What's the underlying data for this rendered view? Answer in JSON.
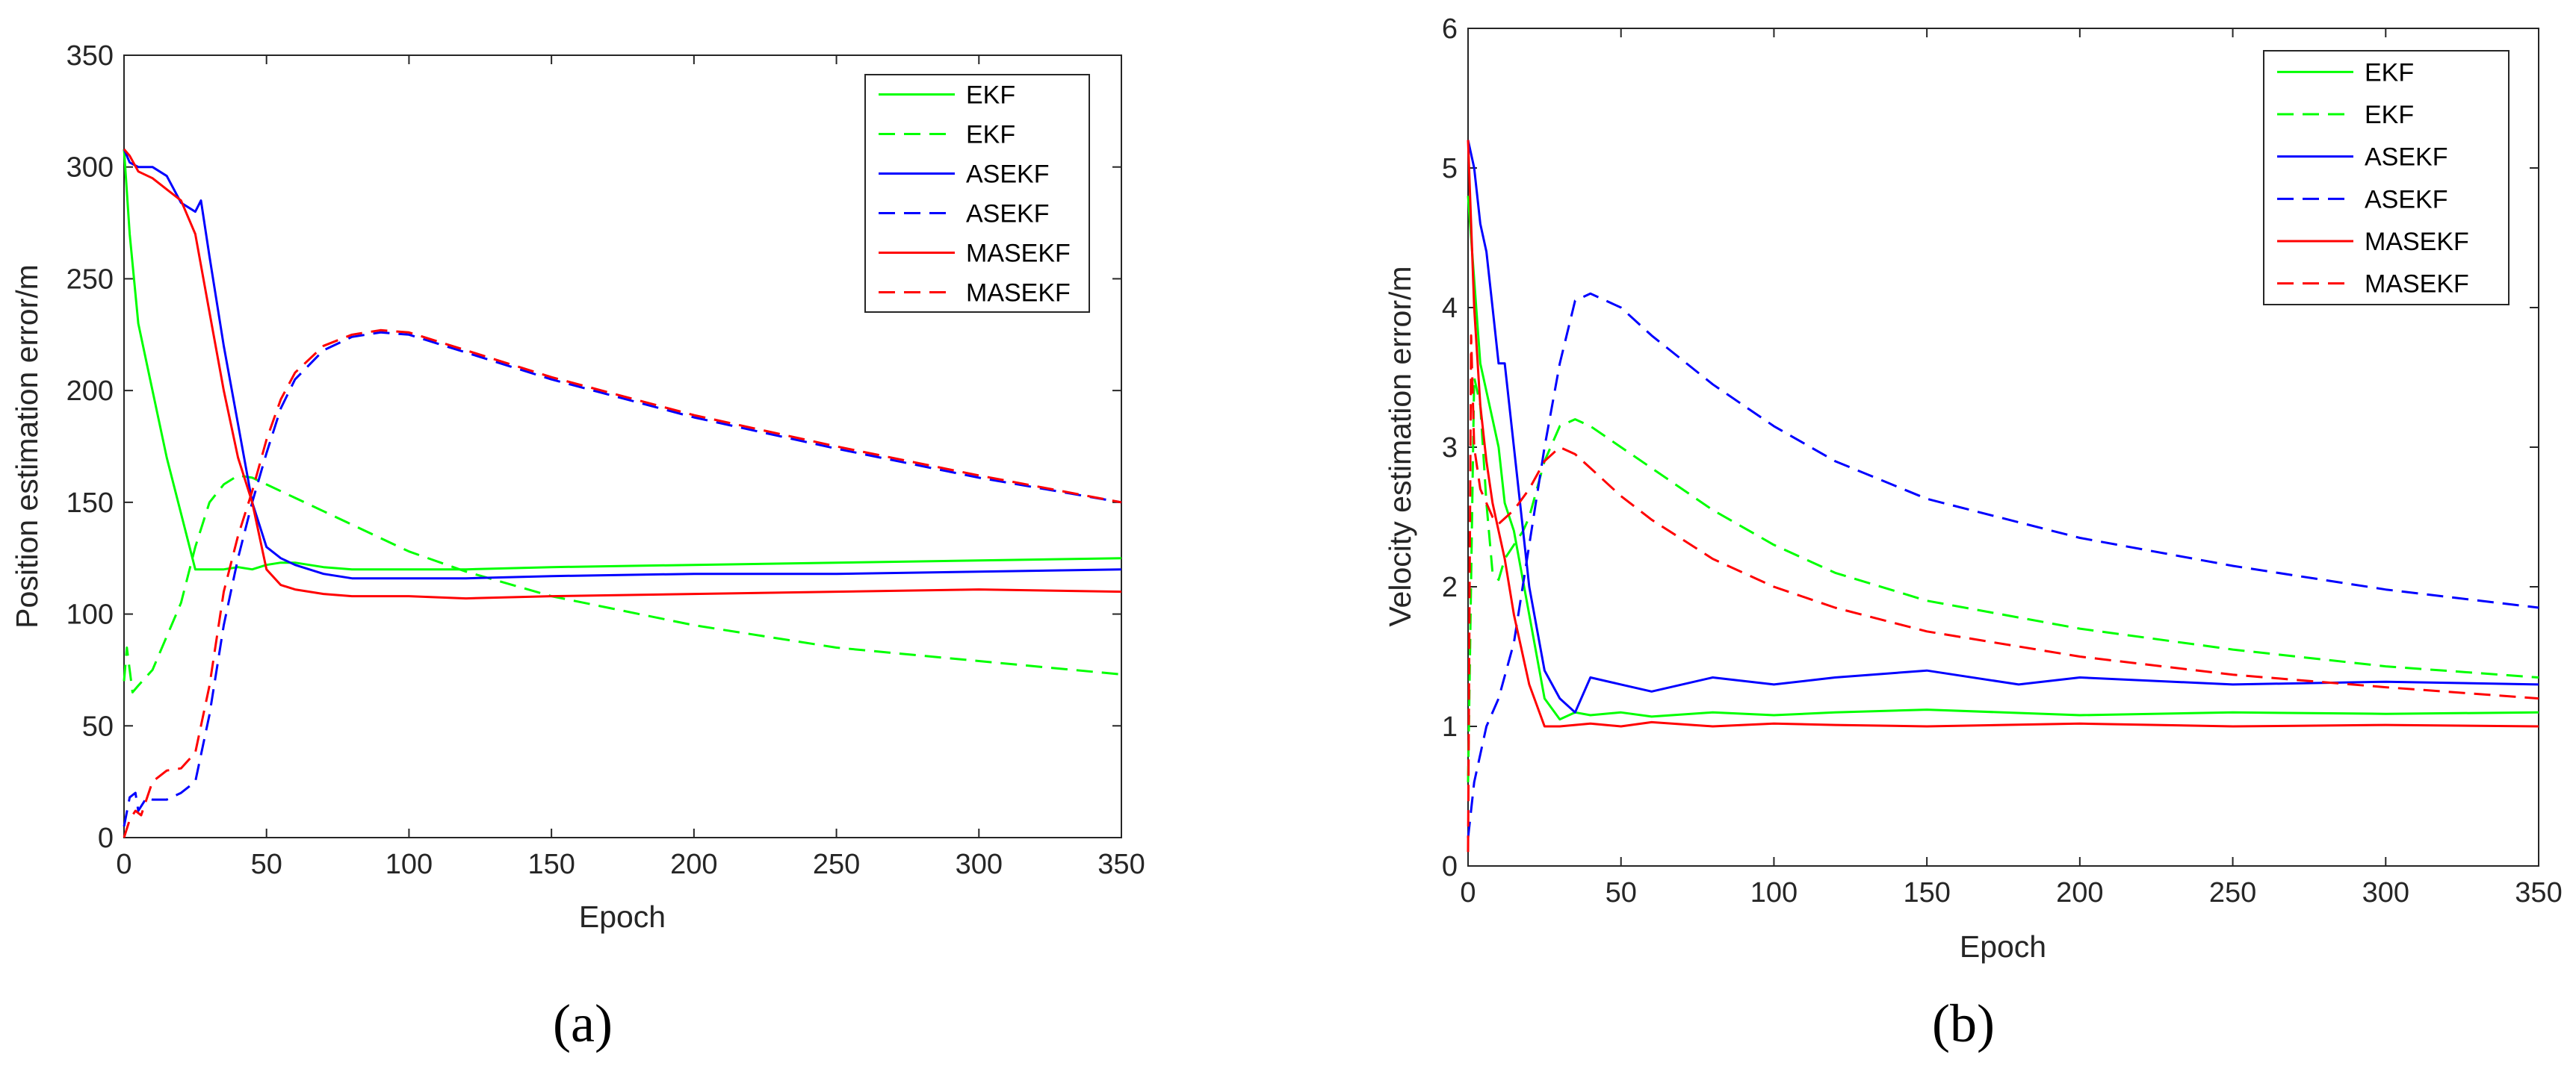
{
  "chart_data": [
    {
      "type": "line",
      "panel_label": "(a)",
      "title": "",
      "xlabel": "Epoch",
      "ylabel": "Position estimation error/m",
      "xlim": [
        0,
        350
      ],
      "ylim": [
        0,
        350
      ],
      "xticks": [
        0,
        50,
        100,
        150,
        200,
        250,
        300,
        350
      ],
      "yticks": [
        0,
        50,
        100,
        150,
        200,
        250,
        300,
        350
      ],
      "legend_position": "top-right",
      "series": [
        {
          "name": "EKF",
          "color": "#00ff00",
          "dash": "solid",
          "x": [
            0,
            2,
            5,
            10,
            15,
            20,
            25,
            30,
            35,
            40,
            45,
            50,
            55,
            60,
            70,
            80,
            100,
            120,
            150,
            200,
            250,
            300,
            350
          ],
          "y": [
            308,
            270,
            230,
            200,
            170,
            145,
            120,
            120,
            120,
            121,
            120,
            122,
            123,
            123,
            121,
            120,
            120,
            120,
            121,
            122,
            123,
            124,
            125
          ]
        },
        {
          "name": "EKF",
          "color": "#00ff00",
          "dash": "dashed",
          "x": [
            0,
            1,
            2,
            3,
            5,
            10,
            15,
            20,
            25,
            30,
            35,
            40,
            45,
            50,
            60,
            70,
            80,
            90,
            100,
            120,
            150,
            200,
            250,
            300,
            350
          ],
          "y": [
            70,
            85,
            75,
            65,
            68,
            75,
            90,
            105,
            130,
            150,
            158,
            162,
            161,
            158,
            152,
            146,
            140,
            134,
            128,
            119,
            108,
            95,
            85,
            79,
            73
          ]
        },
        {
          "name": "ASEKF",
          "color": "#0000ff",
          "dash": "solid",
          "x": [
            0,
            2,
            5,
            10,
            15,
            20,
            25,
            27,
            30,
            35,
            40,
            45,
            50,
            55,
            60,
            70,
            80,
            90,
            100,
            120,
            150,
            200,
            250,
            300,
            350
          ],
          "y": [
            308,
            302,
            300,
            300,
            296,
            284,
            280,
            285,
            260,
            220,
            185,
            150,
            130,
            125,
            122,
            118,
            116,
            116,
            116,
            116,
            117,
            118,
            118,
            119,
            120
          ]
        },
        {
          "name": "ASEKF",
          "color": "#0000ff",
          "dash": "dashed",
          "x": [
            0,
            2,
            4,
            5,
            8,
            10,
            15,
            20,
            25,
            30,
            35,
            40,
            45,
            50,
            55,
            60,
            70,
            80,
            90,
            100,
            120,
            150,
            200,
            250,
            300,
            350
          ],
          "y": [
            5,
            18,
            20,
            12,
            18,
            17,
            17,
            20,
            25,
            55,
            95,
            125,
            150,
            172,
            192,
            205,
            218,
            224,
            226,
            225,
            217,
            205,
            188,
            174,
            161,
            150
          ]
        },
        {
          "name": "MASEKF",
          "color": "#ff0000",
          "dash": "solid",
          "x": [
            0,
            2,
            5,
            10,
            15,
            20,
            25,
            30,
            35,
            40,
            45,
            50,
            55,
            60,
            70,
            80,
            100,
            120,
            150,
            200,
            250,
            300,
            350
          ],
          "y": [
            308,
            305,
            298,
            295,
            290,
            285,
            270,
            235,
            200,
            170,
            150,
            120,
            113,
            111,
            109,
            108,
            108,
            107,
            108,
            109,
            110,
            111,
            110
          ]
        },
        {
          "name": "MASEKF",
          "color": "#ff0000",
          "dash": "dashed",
          "x": [
            0,
            2,
            4,
            6,
            10,
            15,
            20,
            25,
            30,
            35,
            40,
            45,
            50,
            55,
            60,
            70,
            80,
            90,
            100,
            120,
            150,
            200,
            250,
            300,
            350
          ],
          "y": [
            0,
            8,
            12,
            10,
            25,
            30,
            31,
            38,
            68,
            110,
            135,
            155,
            178,
            196,
            208,
            220,
            225,
            227,
            226,
            218,
            206,
            189,
            175,
            162,
            150
          ]
        }
      ]
    },
    {
      "type": "line",
      "panel_label": "(b)",
      "title": "",
      "xlabel": "Epoch",
      "ylabel": "Velocity estimation error/m",
      "xlim": [
        0,
        350
      ],
      "ylim": [
        0,
        6
      ],
      "xticks": [
        0,
        50,
        100,
        150,
        200,
        250,
        300,
        350
      ],
      "yticks": [
        0,
        1,
        2,
        3,
        4,
        5,
        6
      ],
      "legend_position": "top-right",
      "series": [
        {
          "name": "EKF",
          "color": "#00ff00",
          "dash": "solid",
          "x": [
            0,
            2,
            4,
            6,
            8,
            10,
            12,
            15,
            20,
            25,
            30,
            35,
            40,
            50,
            60,
            80,
            100,
            120,
            150,
            200,
            250,
            300,
            350
          ],
          "y": [
            4.8,
            4.2,
            3.6,
            3.4,
            3.2,
            3.0,
            2.6,
            2.4,
            1.8,
            1.2,
            1.05,
            1.1,
            1.08,
            1.1,
            1.07,
            1.1,
            1.08,
            1.1,
            1.12,
            1.08,
            1.1,
            1.09,
            1.1
          ]
        },
        {
          "name": "EKF",
          "color": "#00ff00",
          "dash": "dashed",
          "x": [
            0,
            2,
            4,
            6,
            8,
            10,
            12,
            15,
            18,
            20,
            25,
            30,
            35,
            40,
            50,
            60,
            80,
            100,
            120,
            150,
            200,
            250,
            300,
            350
          ],
          "y": [
            0.6,
            3.5,
            3.3,
            2.6,
            2.1,
            2.05,
            2.2,
            2.3,
            2.4,
            2.5,
            2.9,
            3.15,
            3.2,
            3.15,
            3.0,
            2.85,
            2.55,
            2.3,
            2.1,
            1.9,
            1.7,
            1.55,
            1.43,
            1.35
          ]
        },
        {
          "name": "ASEKF",
          "color": "#0000ff",
          "dash": "solid",
          "x": [
            0,
            2,
            4,
            6,
            8,
            10,
            12,
            15,
            18,
            20,
            25,
            30,
            35,
            40,
            50,
            60,
            80,
            100,
            120,
            150,
            180,
            200,
            250,
            300,
            350
          ],
          "y": [
            5.2,
            5.0,
            4.6,
            4.4,
            4.0,
            3.6,
            3.6,
            3.0,
            2.4,
            2.0,
            1.4,
            1.2,
            1.1,
            1.35,
            1.3,
            1.25,
            1.35,
            1.3,
            1.35,
            1.4,
            1.3,
            1.35,
            1.3,
            1.32,
            1.3
          ]
        },
        {
          "name": "ASEKF",
          "color": "#0000ff",
          "dash": "dashed",
          "x": [
            0,
            2,
            4,
            6,
            10,
            15,
            20,
            25,
            30,
            35,
            40,
            50,
            60,
            80,
            100,
            120,
            150,
            200,
            250,
            300,
            350
          ],
          "y": [
            0.2,
            0.6,
            0.8,
            1.0,
            1.2,
            1.6,
            2.3,
            3.0,
            3.6,
            4.05,
            4.1,
            4.0,
            3.8,
            3.45,
            3.15,
            2.9,
            2.63,
            2.35,
            2.15,
            1.98,
            1.85
          ]
        },
        {
          "name": "MASEKF",
          "color": "#ff0000",
          "dash": "solid",
          "x": [
            0,
            2,
            4,
            6,
            8,
            10,
            12,
            15,
            18,
            20,
            25,
            30,
            40,
            50,
            60,
            80,
            100,
            120,
            150,
            200,
            250,
            300,
            350
          ],
          "y": [
            5.2,
            4.0,
            3.3,
            2.9,
            2.6,
            2.4,
            2.2,
            1.8,
            1.5,
            1.3,
            1.0,
            1.0,
            1.02,
            1.0,
            1.03,
            1.0,
            1.02,
            1.01,
            1.0,
            1.02,
            1.0,
            1.01,
            1.0
          ]
        },
        {
          "name": "MASEKF",
          "color": "#ff0000",
          "dash": "dashed",
          "x": [
            0,
            1,
            2,
            4,
            6,
            8,
            10,
            15,
            20,
            25,
            30,
            35,
            40,
            50,
            60,
            80,
            100,
            120,
            150,
            200,
            250,
            300,
            350
          ],
          "y": [
            0.1,
            3.8,
            3.0,
            2.7,
            2.6,
            2.5,
            2.45,
            2.55,
            2.7,
            2.9,
            3.0,
            2.95,
            2.85,
            2.65,
            2.48,
            2.2,
            2.0,
            1.85,
            1.68,
            1.5,
            1.37,
            1.28,
            1.2
          ]
        }
      ]
    }
  ]
}
